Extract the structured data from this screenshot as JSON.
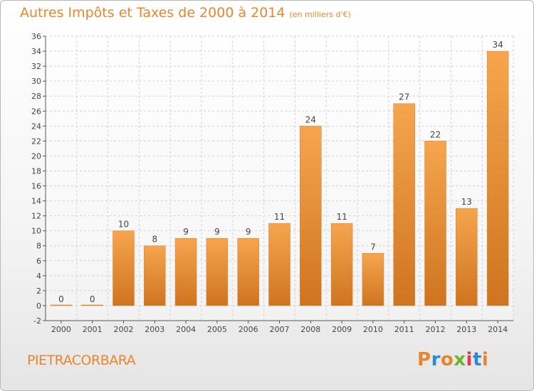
{
  "header": {
    "title": "Autres Impôts et Taxes de 2000 à 2014",
    "unit": "(en milliers d'€)"
  },
  "commune": "PIETRACORBARA",
  "brand": {
    "letters": [
      "P",
      "r",
      "o",
      "x",
      "i",
      "t",
      "i"
    ],
    "colors": [
      "#e8862e",
      "#2a8ad6",
      "#e8862e",
      "#6bb52e",
      "#e53b3b",
      "#2a8ad6",
      "#e8862e"
    ]
  },
  "colors": {
    "bar_light": "#f6a54e",
    "bar_dark": "#cf7420",
    "text": "#e8862e"
  },
  "chart_data": {
    "type": "bar",
    "categories": [
      "2000",
      "2001",
      "2002",
      "2003",
      "2004",
      "2005",
      "2006",
      "2007",
      "2008",
      "2009",
      "2010",
      "2011",
      "2012",
      "2013",
      "2014"
    ],
    "values": [
      0,
      0,
      10,
      8,
      9,
      9,
      9,
      11,
      24,
      11,
      7,
      27,
      22,
      13,
      34
    ],
    "title": "Autres Impôts et Taxes de 2000 à 2014",
    "ylim": [
      -2,
      36
    ],
    "yticks": [
      -2,
      0,
      2,
      4,
      6,
      8,
      10,
      12,
      14,
      16,
      18,
      20,
      22,
      24,
      26,
      28,
      30,
      32,
      34,
      36
    ],
    "grid": true,
    "data_labels": true
  }
}
